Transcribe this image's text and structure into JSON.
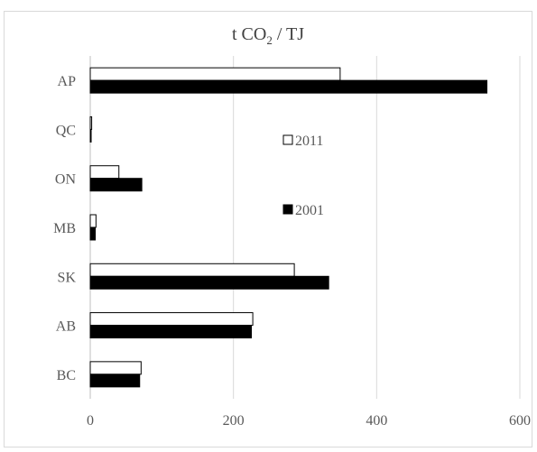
{
  "chart_data": {
    "type": "bar",
    "orientation": "horizontal",
    "title": "t CO₂ / TJ",
    "title_parts": {
      "pre": "t CO",
      "sub": "2",
      "post": " / TJ"
    },
    "categories": [
      "AP",
      "QC",
      "ON",
      "MB",
      "SK",
      "AB",
      "BC"
    ],
    "series": [
      {
        "name": "2011",
        "values": [
          349,
          2,
          40,
          8,
          285,
          227,
          71
        ],
        "fill": "#ffffff",
        "stroke": "#000000"
      },
      {
        "name": "2001",
        "values": [
          554,
          1,
          72,
          7,
          333,
          225,
          69
        ],
        "fill": "#000000",
        "stroke": "#000000"
      }
    ],
    "xlim": [
      0,
      600
    ],
    "xticks": [
      0,
      200,
      400,
      600
    ],
    "grid": "vertical",
    "legend_position": "right-upper-middle",
    "colors": {
      "grid": "#d9d9d9",
      "axis": "#bfbfbf",
      "text": "#595959"
    }
  }
}
